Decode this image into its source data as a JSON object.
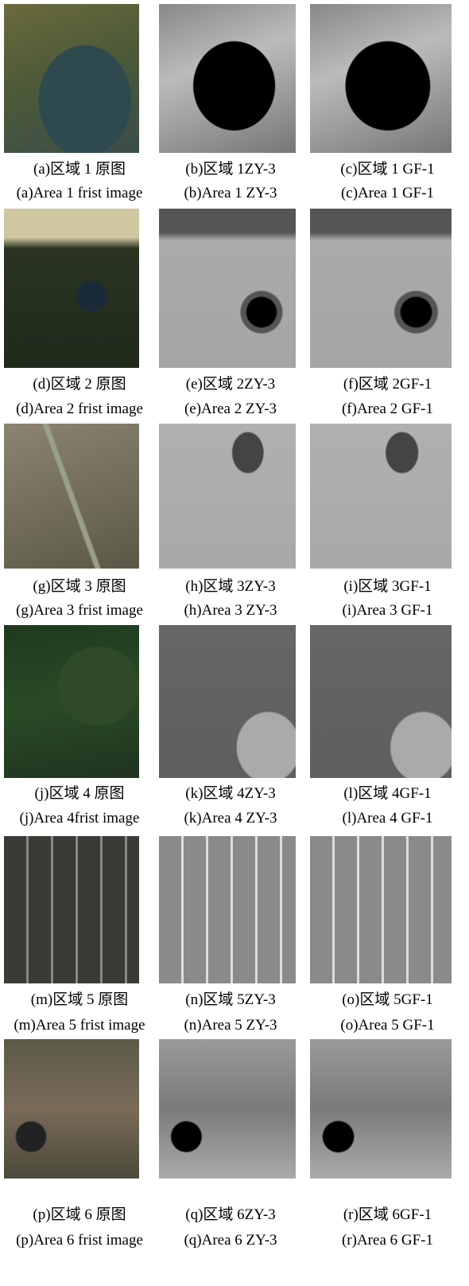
{
  "figure": {
    "rows": [
      {
        "panels": [
          {
            "caption_cn": "(a)区域 1 原图",
            "caption_en": "(a)Area 1 frist image"
          },
          {
            "caption_cn": "(b)区域 1ZY-3",
            "caption_en": "(b)Area 1 ZY-3"
          },
          {
            "caption_cn": "(c)区域 1 GF-1",
            "caption_en": "(c)Area 1 GF-1"
          }
        ]
      },
      {
        "panels": [
          {
            "caption_cn": "(d)区域 2 原图",
            "caption_en": "(d)Area 2 frist image"
          },
          {
            "caption_cn": "(e)区域 2ZY-3",
            "caption_en": "(e)Area 2 ZY-3"
          },
          {
            "caption_cn": "(f)区域 2GF-1",
            "caption_en": "(f)Area 2 GF-1"
          }
        ]
      },
      {
        "panels": [
          {
            "caption_cn": "(g)区域 3 原图",
            "caption_en": "(g)Area 3 frist image"
          },
          {
            "caption_cn": "(h)区域 3ZY-3",
            "caption_en": "(h)Area 3 ZY-3"
          },
          {
            "caption_cn": "(i)区域 3GF-1",
            "caption_en": "(i)Area 3 GF-1"
          }
        ]
      },
      {
        "panels": [
          {
            "caption_cn": "(j)区域 4 原图",
            "caption_en": "(j)Area 4frist image"
          },
          {
            "caption_cn": "(k)区域 4ZY-3",
            "caption_en": "(k)Area 4 ZY-3"
          },
          {
            "caption_cn": "(l)区域 4GF-1",
            "caption_en": "(l)Area 4 GF-1"
          }
        ]
      },
      {
        "panels": [
          {
            "caption_cn": "(m)区域 5 原图",
            "caption_en": "(m)Area 5 frist image"
          },
          {
            "caption_cn": "(n)区域 5ZY-3",
            "caption_en": "(n)Area 5 ZY-3"
          },
          {
            "caption_cn": "(o)区域 5GF-1",
            "caption_en": "(o)Area 5 GF-1"
          }
        ]
      },
      {
        "panels": [
          {
            "caption_cn": "(p)区域 6 原图",
            "caption_en": "(p)Area 6 frist image"
          },
          {
            "caption_cn": "(q)区域 6ZY-3",
            "caption_en": "(q)Area 6 ZY-3"
          },
          {
            "caption_cn": "(r)区域 6GF-1",
            "caption_en": "(r)Area 6 GF-1"
          }
        ]
      }
    ]
  }
}
